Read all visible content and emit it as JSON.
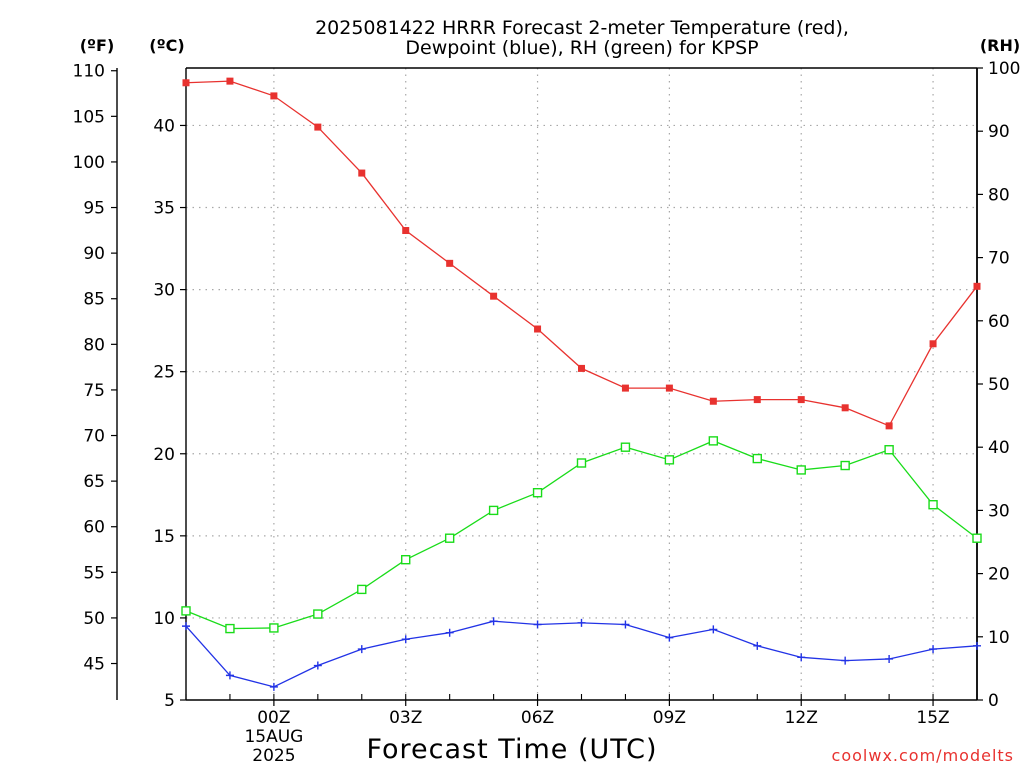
{
  "chart_data": {
    "type": "line",
    "title": "2025081422 HRRR Forecast 2-meter Temperature (red),",
    "title_line2": "Dewpoint (blue), RH (green) for KPSP",
    "xlabel": "Forecast Time (UTC)",
    "x": [
      "2025-08-14 22Z",
      "2025-08-14 23Z",
      "2025-08-15 00Z",
      "2025-08-15 01Z",
      "2025-08-15 02Z",
      "2025-08-15 03Z",
      "2025-08-15 04Z",
      "2025-08-15 05Z",
      "2025-08-15 06Z",
      "2025-08-15 07Z",
      "2025-08-15 08Z",
      "2025-08-15 09Z",
      "2025-08-15 10Z",
      "2025-08-15 11Z",
      "2025-08-15 12Z",
      "2025-08-15 13Z",
      "2025-08-15 14Z",
      "2025-08-15 15Z",
      "2025-08-15 16Z"
    ],
    "x_ticks": [
      {
        "index": 2,
        "label": "00Z",
        "sub1": "15AUG",
        "sub2": "2025"
      },
      {
        "index": 5,
        "label": "03Z"
      },
      {
        "index": 8,
        "label": "06Z"
      },
      {
        "index": 11,
        "label": "09Z"
      },
      {
        "index": 14,
        "label": "12Z"
      },
      {
        "index": 17,
        "label": "15Z"
      }
    ],
    "axes": {
      "fahrenheit": {
        "unit_label": "(ºF)",
        "range": [
          41,
          110
        ],
        "ticks": [
          "45",
          "50",
          "55",
          "60",
          "65",
          "70",
          "75",
          "80",
          "85",
          "90",
          "95",
          "100",
          "105",
          "110"
        ]
      },
      "celsius": {
        "unit_label": "(ºC)",
        "range": [
          5,
          43.5
        ],
        "ticks": [
          "5",
          "10",
          "15",
          "20",
          "25",
          "30",
          "35",
          "40"
        ]
      },
      "rh": {
        "unit_label": "(RH)",
        "range": [
          0,
          100
        ],
        "ticks": [
          "0",
          "10",
          "20",
          "30",
          "40",
          "50",
          "60",
          "70",
          "80",
          "90",
          "100"
        ]
      }
    },
    "grid": true,
    "series": [
      {
        "name": "Temperature (red)",
        "axis": "celsius",
        "color": "#e8322f",
        "marker": "filled-square",
        "values": [
          42.6,
          42.7,
          41.8,
          39.9,
          37.1,
          33.6,
          31.6,
          29.6,
          27.6,
          25.2,
          24.0,
          24.0,
          23.2,
          23.3,
          23.3,
          22.8,
          21.7,
          26.7,
          30.2
        ]
      },
      {
        "name": "Dewpoint (blue)",
        "axis": "celsius",
        "color": "#2233e6",
        "marker": "plus",
        "values": [
          9.5,
          6.5,
          5.8,
          7.1,
          8.1,
          8.7,
          9.1,
          9.8,
          9.6,
          9.7,
          9.6,
          8.8,
          9.3,
          8.3,
          7.6,
          7.4,
          7.5,
          8.1,
          8.3
        ]
      },
      {
        "name": "RH (green)",
        "axis": "rh",
        "color": "#19dc19",
        "marker": "open-square",
        "values": [
          14.1,
          11.3,
          11.4,
          13.6,
          17.5,
          22.2,
          25.6,
          30.0,
          32.8,
          37.5,
          40.0,
          38.0,
          41.0,
          38.2,
          36.4,
          37.1,
          39.6,
          30.9,
          25.6
        ]
      }
    ],
    "credit": "coolwx.com/modelts"
  }
}
